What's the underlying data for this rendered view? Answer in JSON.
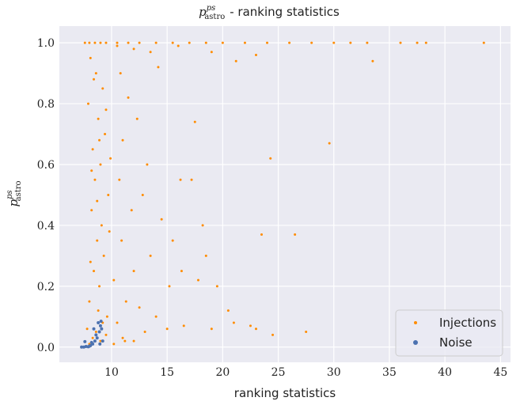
{
  "chart_data": {
    "type": "scatter",
    "title": {
      "symbol": "p",
      "superscript": "ps",
      "subscript": "astro",
      "text": "- ranking statistics"
    },
    "xlabel": "ranking statistics",
    "ylabel": {
      "symbol": "p",
      "superscript": "ps",
      "subscript": "astro"
    },
    "xlim": [
      5.3,
      45.9
    ],
    "ylim": [
      -0.05,
      1.055
    ],
    "xticks": [
      10,
      15,
      20,
      25,
      30,
      35,
      40,
      45
    ],
    "yticks": [
      {
        "value": 0,
        "label": "0.0"
      },
      0.2,
      0.4,
      0.6,
      0.8,
      {
        "value": 1,
        "label": "1.0"
      }
    ],
    "grid": true,
    "legend": "lower right",
    "series": [
      {
        "name": "Injections",
        "color": "#ff8c00",
        "x": [
          7.6,
          8.0,
          8.5,
          9.0,
          9.5,
          10.5,
          11.5,
          12.5,
          14,
          15.5,
          17,
          18.5,
          20,
          22,
          24,
          26,
          28,
          30,
          31.5,
          33,
          36,
          37.5,
          38.3,
          43.5,
          10.5,
          12,
          13.5,
          16,
          19,
          21.2,
          23,
          33.5,
          14.2,
          8.1,
          8.6,
          9.2,
          7.9,
          8.8,
          9.4,
          8.3,
          9.0,
          8.5,
          9.7,
          8.2,
          9.1,
          8.7,
          9.3,
          8.4,
          8.9,
          8.0,
          9.6,
          8.6,
          9.0,
          8.4,
          9.5,
          8.9,
          8.2,
          9.9,
          8.7,
          9.8,
          8.1,
          10.2,
          8.8,
          10.5,
          8.3,
          10.8,
          11.5,
          12.3,
          11,
          13.2,
          10.7,
          12.8,
          11.8,
          14.5,
          10.9,
          13.5,
          12,
          15.2,
          11.3,
          14,
          16.5,
          13,
          17.5,
          29.6,
          16.2,
          17.2,
          24.3,
          18.2,
          15.5,
          26.5,
          23.5,
          16.3,
          19.5,
          17.8,
          20.5,
          21,
          22.5,
          24.5,
          27.5,
          18.5,
          12.5,
          11.2,
          15,
          19,
          23,
          7.5,
          8,
          8.7,
          9.5,
          10.2,
          11,
          12,
          7.8,
          9.2
        ],
        "y": [
          1,
          1,
          1,
          1,
          1,
          1,
          1,
          1,
          1,
          1,
          1,
          1,
          1,
          1,
          1,
          1,
          1,
          1,
          1,
          1,
          1,
          1,
          1,
          1,
          0.99,
          0.98,
          0.97,
          0.99,
          0.97,
          0.94,
          0.96,
          0.94,
          0.92,
          0.95,
          0.9,
          0.85,
          0.8,
          0.75,
          0.7,
          0.65,
          0.6,
          0.55,
          0.5,
          0.45,
          0.4,
          0.35,
          0.3,
          0.25,
          0.2,
          0.15,
          0.1,
          0.05,
          0.02,
          0.88,
          0.78,
          0.68,
          0.58,
          0.62,
          0.48,
          0.38,
          0.28,
          0.22,
          0.12,
          0.08,
          0.03,
          0.9,
          0.82,
          0.75,
          0.68,
          0.6,
          0.55,
          0.5,
          0.45,
          0.42,
          0.35,
          0.3,
          0.25,
          0.2,
          0.15,
          0.1,
          0.07,
          0.05,
          0.74,
          0.67,
          0.55,
          0.55,
          0.62,
          0.4,
          0.35,
          0.37,
          0.37,
          0.25,
          0.2,
          0.22,
          0.12,
          0.08,
          0.07,
          0.04,
          0.05,
          0.3,
          0.13,
          0.02,
          0.06,
          0.06,
          0.06,
          0,
          0.01,
          0.03,
          0.04,
          0.01,
          0.03,
          0.02,
          0.06,
          0.08
        ]
      },
      {
        "name": "Noise",
        "color": "#4c72b0",
        "x": [
          7.3,
          7.5,
          7.7,
          7.9,
          8.1,
          8.3,
          8.5,
          8.7,
          8.9,
          9.0,
          8.8,
          9.1,
          8.6,
          8.2,
          8.0,
          9.2,
          8.4,
          7.6,
          9.05,
          8.95
        ],
        "y": [
          0,
          0,
          0.002,
          0.001,
          0.005,
          0.01,
          0.02,
          0.03,
          0.05,
          0.07,
          0.08,
          0.06,
          0.04,
          0.015,
          0.003,
          0.02,
          0.06,
          0.018,
          0.085,
          0.01
        ]
      }
    ]
  }
}
